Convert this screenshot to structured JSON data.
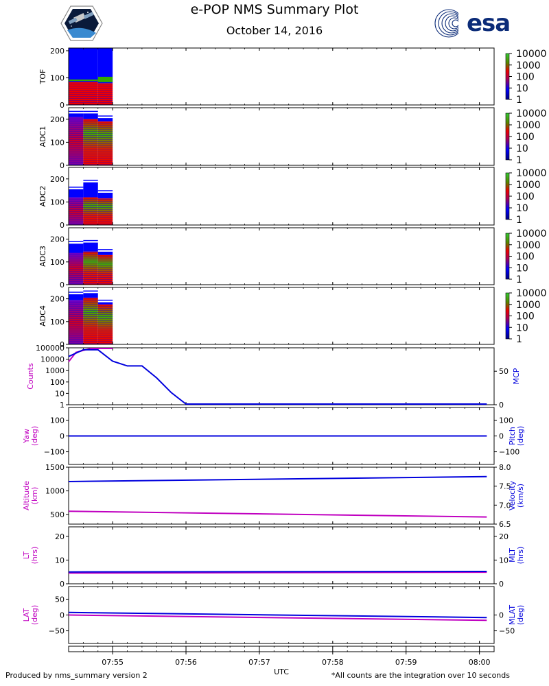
{
  "page": {
    "title": "e-POP NMS Summary Plot",
    "date": "October 14, 2016",
    "footer_left": "Produced by nms_summary version 2",
    "footer_right": "*All counts are the integration over 10 seconds",
    "logo_right_text": "esa"
  },
  "colors": {
    "counts": "#c000c0",
    "secondary": "#0000dd",
    "spec_blue": "#0000ff",
    "spec_red": "#ee0000",
    "spec_green": "#33aa00"
  },
  "chart_data": [
    {
      "type": "heatmap",
      "ylabel": "TOF",
      "ylim": [
        0,
        210
      ],
      "yticks": [
        0,
        100,
        200
      ],
      "colorbar_ticks": [
        "10000",
        "1000",
        "100",
        "10",
        "1"
      ],
      "blocks": [
        {
          "x0": "07:54:24",
          "x1": "07:54:48",
          "top": 210,
          "red_top": 85,
          "green_band": [
            88,
            94
          ]
        },
        {
          "x0": "07:54:48",
          "x1": "07:55:00",
          "top": 210,
          "red_top": 80,
          "green_band": [
            84,
            104
          ]
        }
      ]
    },
    {
      "type": "heatmap",
      "ylabel": "ADC1",
      "ylim": [
        0,
        250
      ],
      "yticks": [
        0,
        100,
        200
      ],
      "colorbar_ticks": [
        "10000",
        "1000",
        "100",
        "10",
        "1"
      ],
      "blocks": [
        {
          "x0": "07:54:24",
          "x1": "07:54:36",
          "top": 225,
          "red_top": 210
        },
        {
          "x0": "07:54:36",
          "x1": "07:54:48",
          "top": 225,
          "red_top": 200
        },
        {
          "x0": "07:54:48",
          "x1": "07:55:00",
          "top": 205,
          "red_top": 190
        }
      ]
    },
    {
      "type": "heatmap",
      "ylabel": "ADC2",
      "ylim": [
        0,
        250
      ],
      "yticks": [
        0,
        100,
        200
      ],
      "colorbar_ticks": [
        "10000",
        "1000",
        "100",
        "10",
        "1"
      ],
      "blocks": [
        {
          "x0": "07:54:24",
          "x1": "07:54:36",
          "top": 155,
          "red_top": 120
        },
        {
          "x0": "07:54:36",
          "x1": "07:54:48",
          "top": 185,
          "red_top": 120
        },
        {
          "x0": "07:54:48",
          "x1": "07:55:00",
          "top": 140,
          "red_top": 115
        }
      ]
    },
    {
      "type": "heatmap",
      "ylabel": "ADC3",
      "ylim": [
        0,
        250
      ],
      "yticks": [
        0,
        100,
        200
      ],
      "colorbar_ticks": [
        "10000",
        "1000",
        "100",
        "10",
        "1"
      ],
      "blocks": [
        {
          "x0": "07:54:24",
          "x1": "07:54:36",
          "top": 180,
          "red_top": 140
        },
        {
          "x0": "07:54:36",
          "x1": "07:54:48",
          "top": 185,
          "red_top": 145
        },
        {
          "x0": "07:54:48",
          "x1": "07:55:00",
          "top": 145,
          "red_top": 130
        }
      ]
    },
    {
      "type": "heatmap",
      "ylabel": "ADC4",
      "ylim": [
        0,
        250
      ],
      "yticks": [
        0,
        100,
        200
      ],
      "colorbar_ticks": [
        "10000",
        "1000",
        "100",
        "10",
        "1"
      ],
      "blocks": [
        {
          "x0": "07:54:24",
          "x1": "07:54:36",
          "top": 220,
          "red_top": 195
        },
        {
          "x0": "07:54:36",
          "x1": "07:54:48",
          "top": 225,
          "red_top": 205
        },
        {
          "x0": "07:54:48",
          "x1": "07:55:00",
          "top": 185,
          "red_top": 175
        }
      ]
    },
    {
      "type": "line",
      "ylabel_left": "Counts",
      "ylabel_right": "MCP",
      "yscale_left": "log",
      "ylim_left": [
        1,
        100000
      ],
      "yticks_left": [
        "100000",
        "10000",
        "1000",
        "100",
        "10",
        "1"
      ],
      "ylim_right": [
        0,
        85
      ],
      "yticks_right": [
        "50",
        "0"
      ],
      "series": [
        {
          "axis": "left",
          "color": "#c000c0",
          "x": [
            "07:54:24",
            "07:54:30",
            "07:54:42",
            "07:54:54",
            "07:55:00"
          ],
          "values": [
            6000,
            40000,
            140000,
            120000,
            100000
          ]
        },
        {
          "axis": "right",
          "color": "#0000dd",
          "x": [
            "07:54:24",
            "07:54:36",
            "07:54:48",
            "07:55:00",
            "07:55:12",
            "07:55:24",
            "07:55:36",
            "07:55:48",
            "07:56:00",
            "07:56:12",
            "07:56:24",
            "07:57:00",
            "07:58:00",
            "07:59:00",
            "08:00:00",
            "08:00:06"
          ],
          "values": [
            72,
            82,
            82,
            65,
            58,
            58,
            40,
            18,
            1,
            0,
            0,
            0,
            0,
            0,
            0,
            0
          ]
        }
      ]
    },
    {
      "type": "line",
      "ylabel_left": "Yaw\n(deg)",
      "ylabel_right": "Pitch\n(deg)",
      "ylim_left": [
        -180,
        180
      ],
      "yticks_left": [
        "100",
        "0",
        "−100"
      ],
      "ylim_right": [
        -180,
        180
      ],
      "yticks_right": [
        "100",
        "0",
        "−100"
      ],
      "series": [
        {
          "axis": "left",
          "color": "#c000c0",
          "x": [
            "07:54:24",
            "08:00:06"
          ],
          "values": [
            0,
            0
          ]
        },
        {
          "axis": "right",
          "color": "#0000dd",
          "x": [
            "07:54:24",
            "08:00:06"
          ],
          "values": [
            0,
            0
          ]
        }
      ]
    },
    {
      "type": "line",
      "ylabel_left": "Altitude\n(km)",
      "ylabel_right": "Velocity\n(km/s)",
      "ylim_left": [
        300,
        1500
      ],
      "yticks_left": [
        "1500",
        "1000",
        "500"
      ],
      "ylim_right": [
        6.5,
        8.0
      ],
      "yticks_right": [
        "8.0",
        "7.5",
        "7.0",
        "6.5"
      ],
      "series": [
        {
          "axis": "left",
          "color": "#c000c0",
          "x": [
            "07:54:24",
            "08:00:06"
          ],
          "values": [
            570,
            450
          ]
        },
        {
          "axis": "right",
          "color": "#0000dd",
          "x": [
            "07:54:24",
            "08:00:06"
          ],
          "values": [
            7.62,
            7.75
          ]
        }
      ]
    },
    {
      "type": "line",
      "ylabel_left": "LT\n(hrs)",
      "ylabel_right": "MLT\n(hrs)",
      "ylim_left": [
        0,
        24
      ],
      "yticks_left": [
        "20",
        "10",
        "0"
      ],
      "ylim_right": [
        0,
        24
      ],
      "yticks_right": [
        "20",
        "10",
        "0"
      ],
      "series": [
        {
          "axis": "left",
          "color": "#c000c0",
          "x": [
            "07:54:24",
            "08:00:06"
          ],
          "values": [
            4.5,
            4.9
          ]
        },
        {
          "axis": "right",
          "color": "#0000dd",
          "x": [
            "07:54:24",
            "08:00:06"
          ],
          "values": [
            5.0,
            5.2
          ]
        }
      ]
    },
    {
      "type": "line",
      "ylabel_left": "LAT\n(deg)",
      "ylabel_right": "MLAT\n(deg)",
      "ylim_left": [
        -90,
        90
      ],
      "yticks_left": [
        "50",
        "0",
        "−50"
      ],
      "ylim_right": [
        -90,
        90
      ],
      "yticks_right": [
        "0",
        "−50"
      ],
      "series": [
        {
          "axis": "left",
          "color": "#c000c0",
          "x": [
            "07:54:24",
            "08:00:06"
          ],
          "values": [
            0,
            -17
          ]
        },
        {
          "axis": "right",
          "color": "#0000dd",
          "x": [
            "07:54:24",
            "08:00:06"
          ],
          "values": [
            8,
            -8
          ]
        }
      ]
    }
  ],
  "time_axis": {
    "xlabel": "UTC",
    "xlim": [
      "07:54:24",
      "08:00:12"
    ],
    "ticks": [
      "07:55",
      "07:56",
      "07:57",
      "07:58",
      "07:59",
      "08:00"
    ]
  }
}
